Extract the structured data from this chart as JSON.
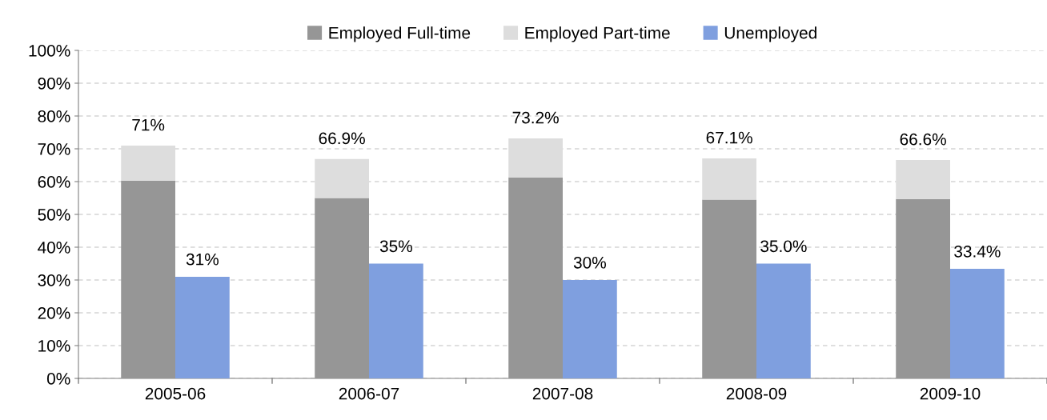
{
  "chart_data": [
    {
      "type": "bar",
      "stacked": true,
      "categories": [
        "2005-06",
        "2006-07",
        "2007-08",
        "2008-09",
        "2009-10"
      ],
      "series": [
        {
          "name": "Employed Full-time",
          "color": "#969696",
          "values": [
            60.3,
            55,
            61.3,
            54.5,
            54.7
          ]
        },
        {
          "name": "Employed Part-time",
          "color": "#dddddd",
          "values": [
            10.7,
            11.9,
            11.9,
            12.6,
            11.9
          ]
        }
      ],
      "totals": [
        "71%",
        "66.9%",
        "73.2%",
        "67.1%",
        "66.6%"
      ],
      "ylim": [
        0,
        100
      ],
      "yticks": [
        {
          "value": 0,
          "label": "0%"
        },
        {
          "value": 10,
          "label": "10%"
        },
        {
          "value": 20,
          "label": "20%"
        },
        {
          "value": 30,
          "label": "30%"
        },
        {
          "value": 40,
          "label": "40%"
        },
        {
          "value": 50,
          "label": "50%"
        },
        {
          "value": 60,
          "label": "60%"
        },
        {
          "value": 70,
          "label": "70%"
        },
        {
          "value": 80,
          "label": "80%"
        },
        {
          "value": 90,
          "label": "90%"
        },
        {
          "value": 100,
          "label": "100%"
        }
      ],
      "grid": "y",
      "legend": "top"
    },
    {
      "type": "bar",
      "categories": [
        "2005-06",
        "2006-07",
        "2007-08",
        "2008-09",
        "2009-10"
      ],
      "series": [
        {
          "name": "Unemployed",
          "color": "#7f9fdf",
          "values": [
            31,
            35,
            30,
            35.0,
            33.4
          ],
          "value_labels": [
            "31%",
            "35%",
            "30%",
            "35.0%",
            "33.4%"
          ]
        }
      ],
      "ylim": [
        0,
        100
      ],
      "tick_labels": false,
      "legend": "top"
    }
  ]
}
